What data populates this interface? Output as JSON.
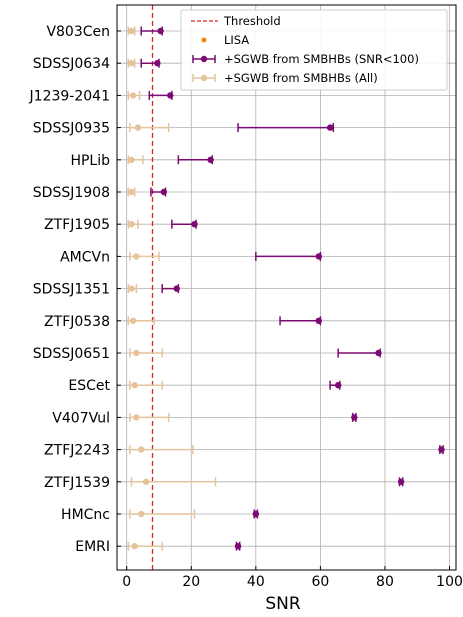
{
  "chart_data": {
    "type": "errorbar",
    "title": "",
    "xlabel": "SNR",
    "ylabel": "",
    "xlim": [
      -3,
      102
    ],
    "x_ticks": [
      0,
      20,
      40,
      60,
      80,
      100
    ],
    "grid": true,
    "legend_position": "top-right",
    "threshold": {
      "name": "Threshold",
      "value": 8,
      "color": "#d62728"
    },
    "categories": [
      "V803Cen",
      "SDSSJ0634",
      "J1239-2041",
      "SDSSJ0935",
      "HPLib",
      "SDSSJ1908",
      "ZTFJ1905",
      "AMCVn",
      "SDSSJ1351",
      "ZTFJ0538",
      "SDSSJ0651",
      "ESCet",
      "V407Vul",
      "ZTFJ2243",
      "ZTFJ1539",
      "HMCnc",
      "EMRI"
    ],
    "series": [
      {
        "name": "LISA",
        "color": "#ff7f0e",
        "marker": "point",
        "values": [
          10.5,
          9.5,
          13.5,
          63.5,
          26,
          11.5,
          21,
          59.5,
          15.5,
          59.5,
          78,
          65.5,
          70.5,
          97.5,
          85,
          40,
          34.5
        ]
      },
      {
        "name": "+SGWB from SMBHBs (SNR<100)",
        "color": "#7b0a72",
        "median": [
          10.5,
          9.5,
          13.5,
          63,
          26,
          11.5,
          21,
          59.5,
          15.5,
          59.5,
          78,
          65.5,
          70.5,
          97.5,
          85,
          40,
          34.5
        ],
        "low": [
          4.5,
          4.5,
          7,
          34.5,
          16,
          7.5,
          14,
          40,
          11,
          47.5,
          65.5,
          63,
          70,
          97,
          84.5,
          39.5,
          34
        ],
        "high": [
          11,
          10,
          14,
          64,
          26.5,
          12,
          21.5,
          60,
          16,
          60,
          78.5,
          66,
          71,
          98,
          85.5,
          40.5,
          35
        ]
      },
      {
        "name": "+SGWB from SMBHBs (All)",
        "color": "#e5c39b",
        "median": [
          1.5,
          1.5,
          2,
          3.5,
          1.5,
          1.5,
          1.5,
          3,
          1.5,
          2,
          3,
          2.5,
          3,
          4.5,
          6,
          4.5,
          2.5
        ],
        "low": [
          0.5,
          0.5,
          0.5,
          1,
          0.5,
          0.5,
          0.5,
          1,
          0.5,
          0.5,
          1,
          1,
          1,
          1,
          1.5,
          1,
          0.5
        ],
        "high": [
          2.5,
          2.5,
          4,
          13,
          5,
          2.5,
          3.5,
          10,
          3,
          8.5,
          11,
          11,
          13,
          20.5,
          27.5,
          21,
          11
        ]
      }
    ]
  }
}
